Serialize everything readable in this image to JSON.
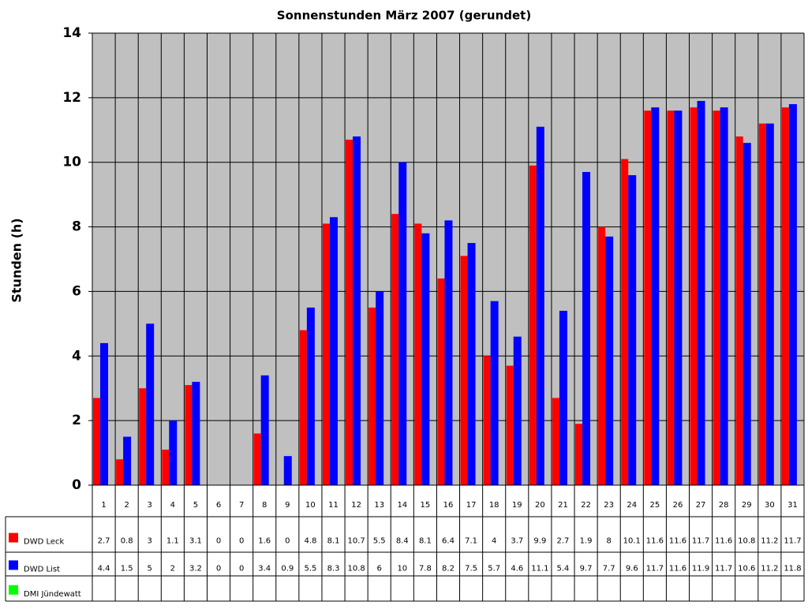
{
  "chart_data": {
    "type": "bar",
    "title": "Sonnenstunden März 2007 (gerundet)",
    "y_label": "Stunden (h)",
    "categories": [
      "1",
      "2",
      "3",
      "4",
      "5",
      "6",
      "7",
      "8",
      "9",
      "10",
      "11",
      "12",
      "13",
      "14",
      "15",
      "16",
      "17",
      "18",
      "19",
      "20",
      "21",
      "22",
      "23",
      "24",
      "25",
      "26",
      "27",
      "28",
      "29",
      "30",
      "31"
    ],
    "series": [
      {
        "name": "DWD Leck",
        "color": "#ff0000",
        "values": [
          2.7,
          0.8,
          3,
          1.1,
          3.1,
          0,
          0,
          1.6,
          0,
          4.8,
          8.1,
          10.7,
          5.5,
          8.4,
          8.1,
          6.4,
          7.1,
          4,
          3.7,
          9.9,
          2.7,
          1.9,
          8,
          10.1,
          11.6,
          11.6,
          11.7,
          11.6,
          10.8,
          11.2,
          11.7
        ]
      },
      {
        "name": "DWD List",
        "color": "#0000ff",
        "values": [
          4.4,
          1.5,
          5,
          2,
          3.2,
          0,
          0,
          3.4,
          0.9,
          5.5,
          8.3,
          10.8,
          6,
          10,
          7.8,
          8.2,
          7.5,
          5.7,
          4.6,
          11.1,
          5.4,
          9.7,
          7.7,
          9.6,
          11.7,
          11.6,
          11.9,
          11.7,
          10.6,
          11.2,
          11.8
        ]
      },
      {
        "name": "DMI Jündewatt",
        "color": "#00ff00",
        "values": [
          null,
          null,
          null,
          null,
          null,
          null,
          null,
          null,
          null,
          null,
          null,
          null,
          null,
          null,
          null,
          null,
          null,
          null,
          null,
          null,
          null,
          null,
          null,
          null,
          null,
          null,
          null,
          null,
          null,
          null,
          null
        ]
      }
    ],
    "ylim": [
      0,
      14
    ],
    "yticks": [
      0,
      2,
      4,
      6,
      8,
      10,
      12,
      14
    ],
    "grid": true,
    "data_table": true
  }
}
